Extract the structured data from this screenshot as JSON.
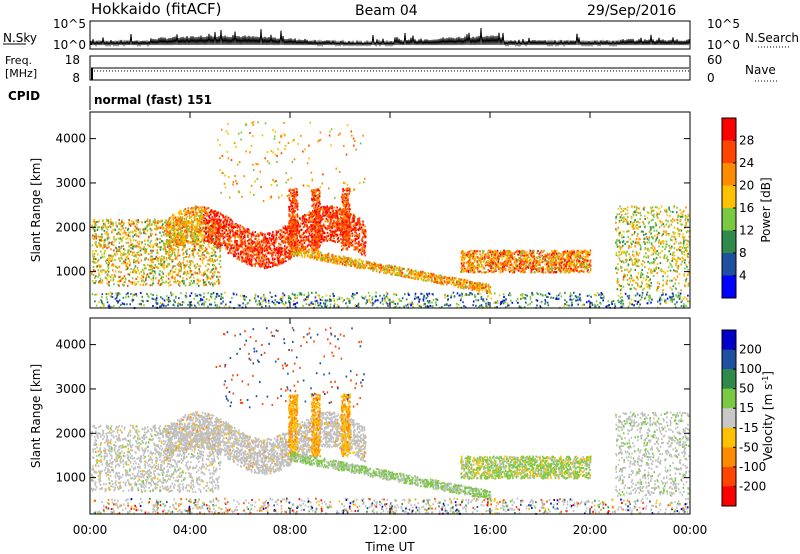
{
  "header": {
    "station": "Hokkaido (fitACF)",
    "beam": "Beam 04",
    "date": "29/Sep/2016"
  },
  "noise_panel": {
    "left_label": "N.Sky",
    "right_label": "N.Search",
    "left_ticks": [
      "10^5",
      "10^0"
    ],
    "right_ticks": [
      "10^5",
      "10^0"
    ]
  },
  "freq_panel": {
    "left_label_line1": "Freq.",
    "left_label_line2": "[MHz]",
    "left_ticks": [
      "18",
      "8"
    ],
    "right_label": "Nave",
    "right_ticks": [
      "60",
      "0"
    ]
  },
  "cpid": {
    "label": "CPID",
    "value": "normal (fast) 151"
  },
  "colors": {
    "power_scale": [
      "#0000ff",
      "#1f4fa0",
      "#2f8a4a",
      "#7ac943",
      "#ffc000",
      "#ff8c00",
      "#ff4500",
      "#ff0000"
    ],
    "velocity_scale": [
      "#ff0000",
      "#ff4500",
      "#ff8c00",
      "#ffc000",
      "#c8c8c8",
      "#7ac943",
      "#2f8a4a",
      "#1f4fa0",
      "#0000c8"
    ],
    "ground_scatter": "#c0c0c0"
  },
  "chart_data": [
    {
      "type": "heatmap",
      "name": "power",
      "ylabel": "Slant Range [km]",
      "y_ticks": [
        "1000",
        "2000",
        "3000",
        "4000"
      ],
      "y_tick_values": [
        1000,
        2000,
        3000,
        4000
      ],
      "ylim": [
        180,
        4600
      ],
      "xlim": [
        0,
        24
      ],
      "colorbar": {
        "label": "Power [dB]",
        "ticks": [
          "4",
          "8",
          "12",
          "16",
          "20",
          "24",
          "28"
        ],
        "tick_values": [
          4,
          8,
          12,
          16,
          20,
          24,
          28
        ],
        "range": [
          0,
          32
        ]
      }
    },
    {
      "type": "heatmap",
      "name": "velocity",
      "ylabel": "Slant Range [km]",
      "y_ticks": [
        "1000",
        "2000",
        "3000",
        "4000"
      ],
      "y_tick_values": [
        1000,
        2000,
        3000,
        4000
      ],
      "ylim": [
        180,
        4600
      ],
      "xlim": [
        0,
        24
      ],
      "colorbar": {
        "label": "Velocity [m s^-1]",
        "ticks": [
          "200",
          "100",
          "50",
          "15",
          "-15",
          "-50",
          "-100",
          "-200"
        ],
        "tick_values": [
          200,
          100,
          50,
          15,
          -15,
          -50,
          -100,
          -200
        ]
      }
    }
  ],
  "x_axis": {
    "ticks": [
      "00:00",
      "04:00",
      "08:00",
      "12:00",
      "16:00",
      "20:00",
      "00:00"
    ],
    "tick_hours": [
      0,
      4,
      8,
      12,
      16,
      20,
      24
    ],
    "label": "Time UT"
  }
}
